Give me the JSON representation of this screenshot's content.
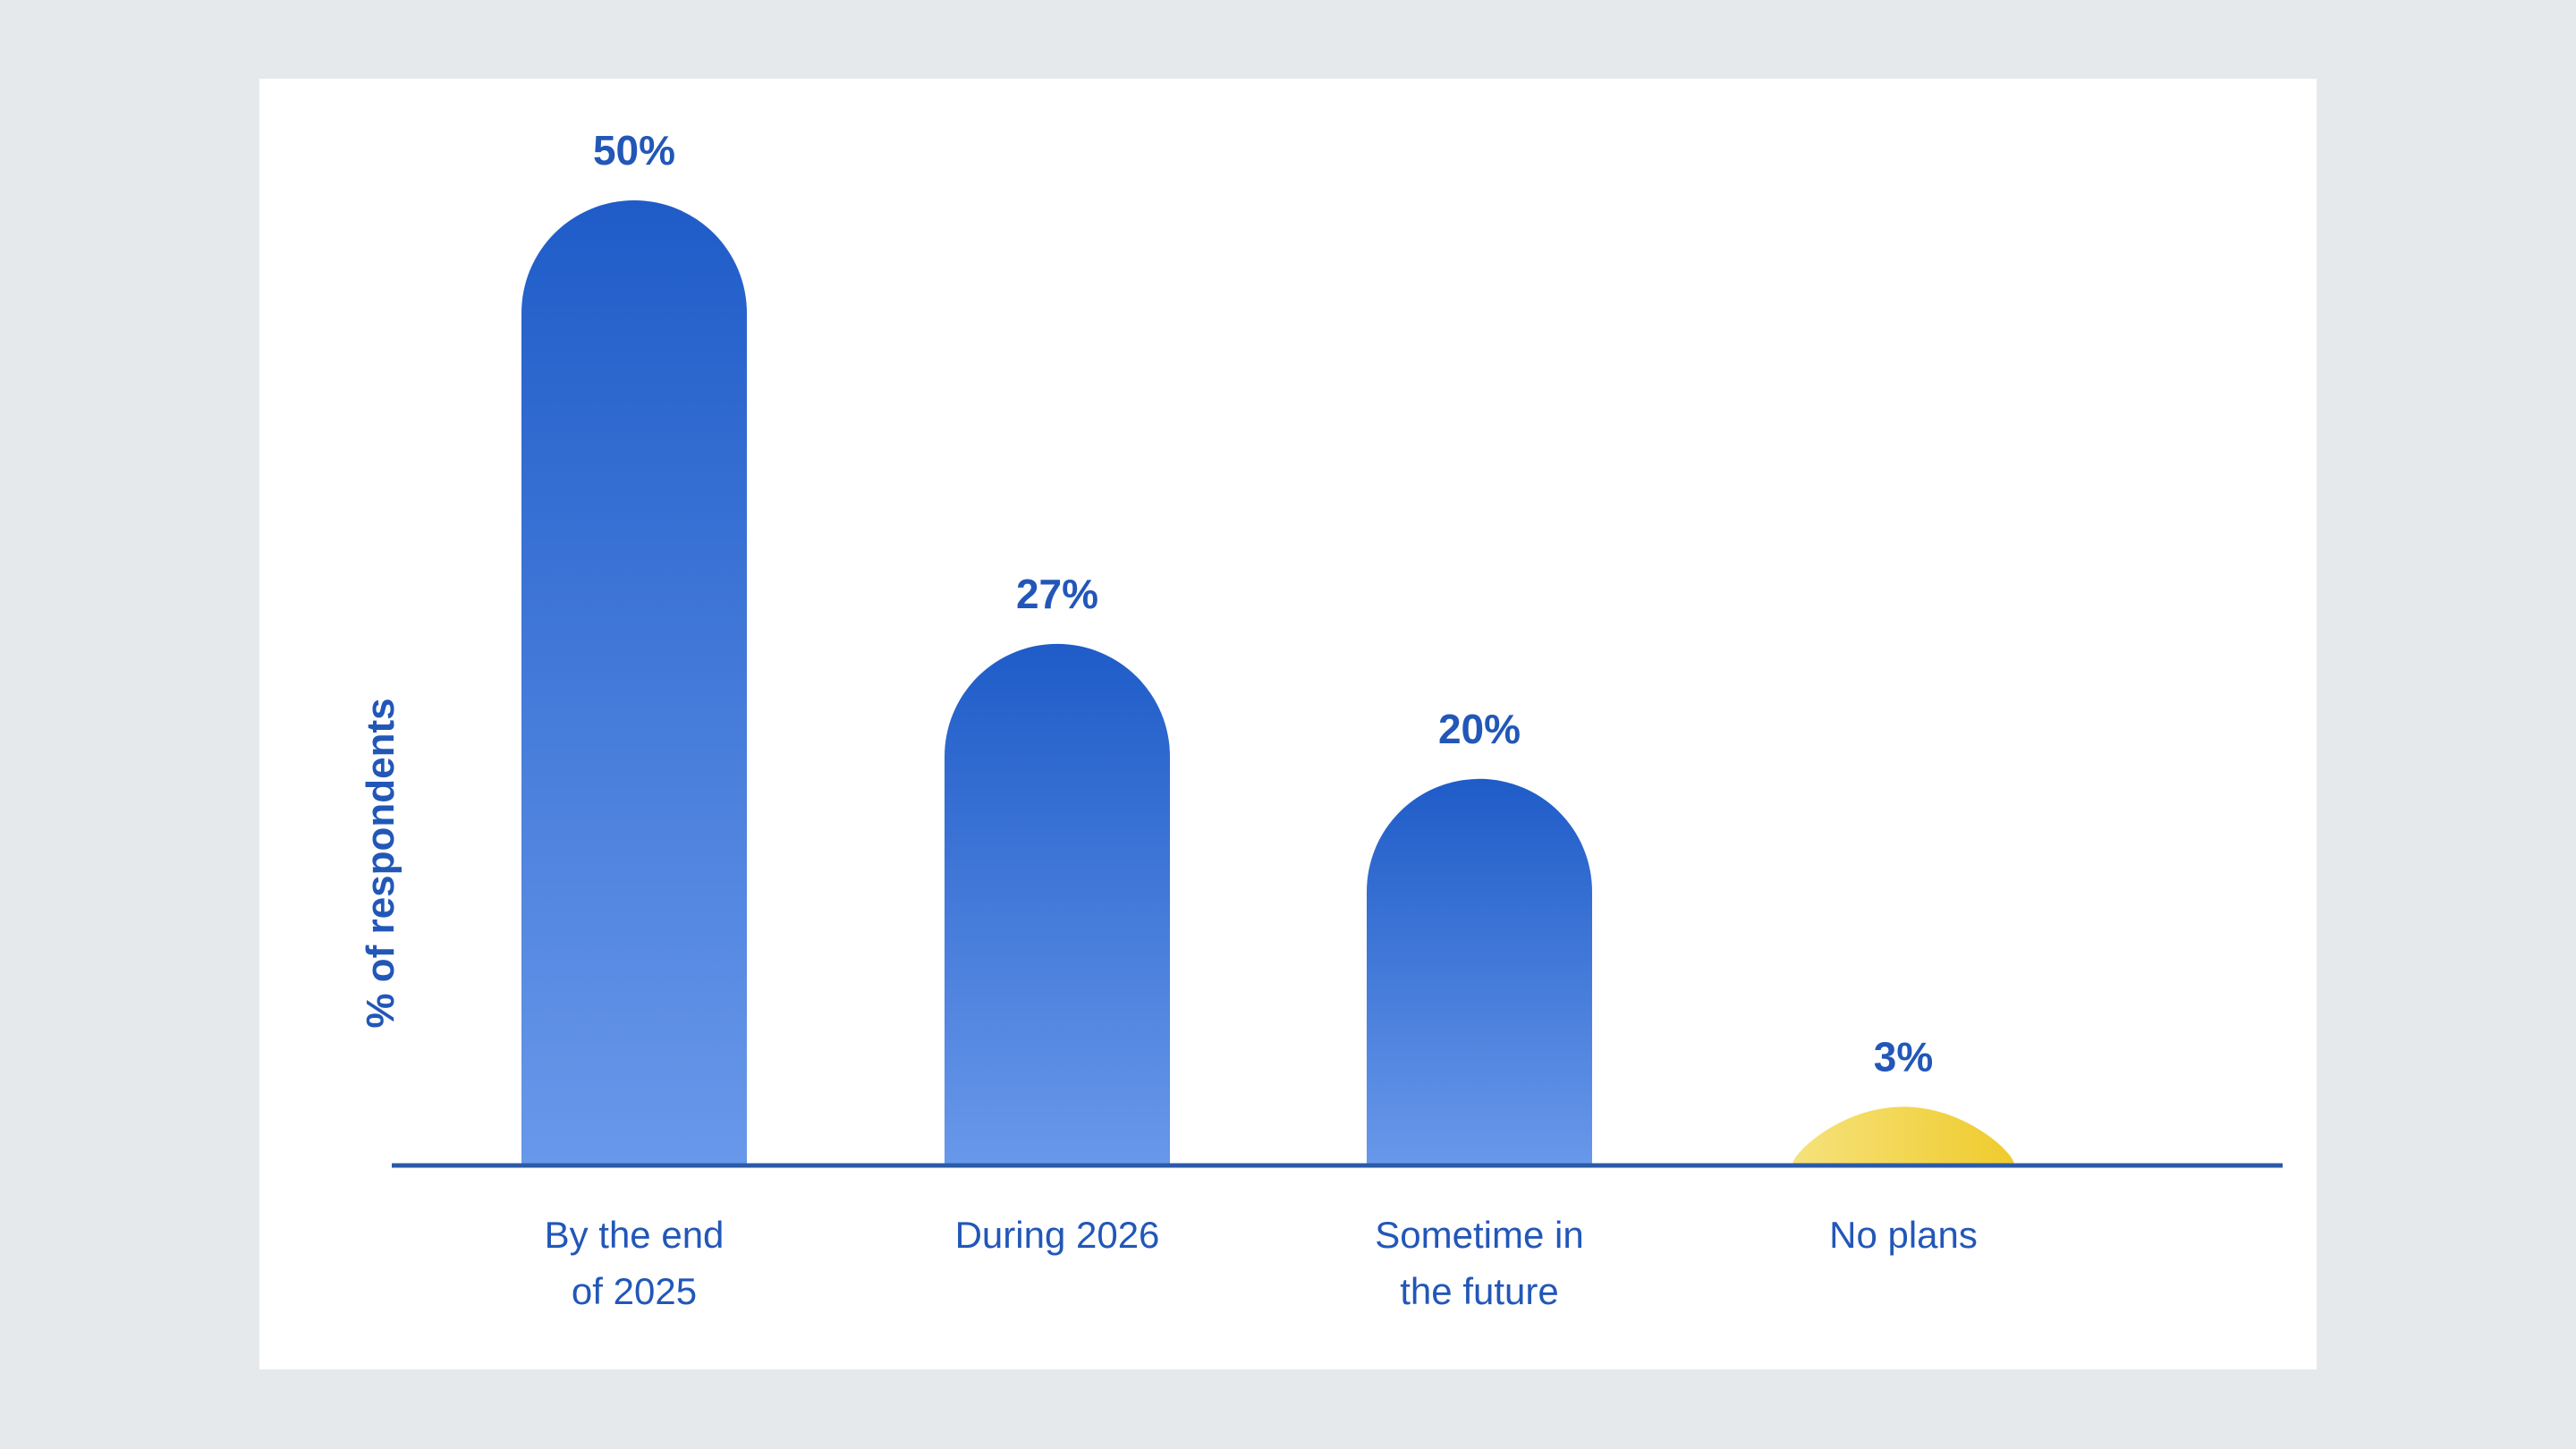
{
  "chart_data": {
    "type": "bar",
    "title": "",
    "xlabel": "",
    "ylabel": "% of respondents",
    "categories": [
      [
        "By the end",
        "of 2025"
      ],
      [
        "During 2026"
      ],
      [
        "Sometime in",
        "the future"
      ],
      [
        "No plans"
      ]
    ],
    "values": [
      50,
      27,
      20,
      3
    ],
    "value_labels": [
      "50%",
      "27%",
      "20%",
      "3%"
    ],
    "ylim": [
      0,
      50
    ],
    "grid": false,
    "legend": "none",
    "colors": {
      "bar_top": "#1f5cc8",
      "bar_bottom": "#6898ea",
      "highlight_top": "#f6e27c",
      "highlight_bottom": "#efcb2c",
      "label": "#2257b8",
      "axis": "#2b5aa8",
      "card": "#ffffff",
      "page": "#e5e9ec"
    },
    "highlight_index": 3
  }
}
